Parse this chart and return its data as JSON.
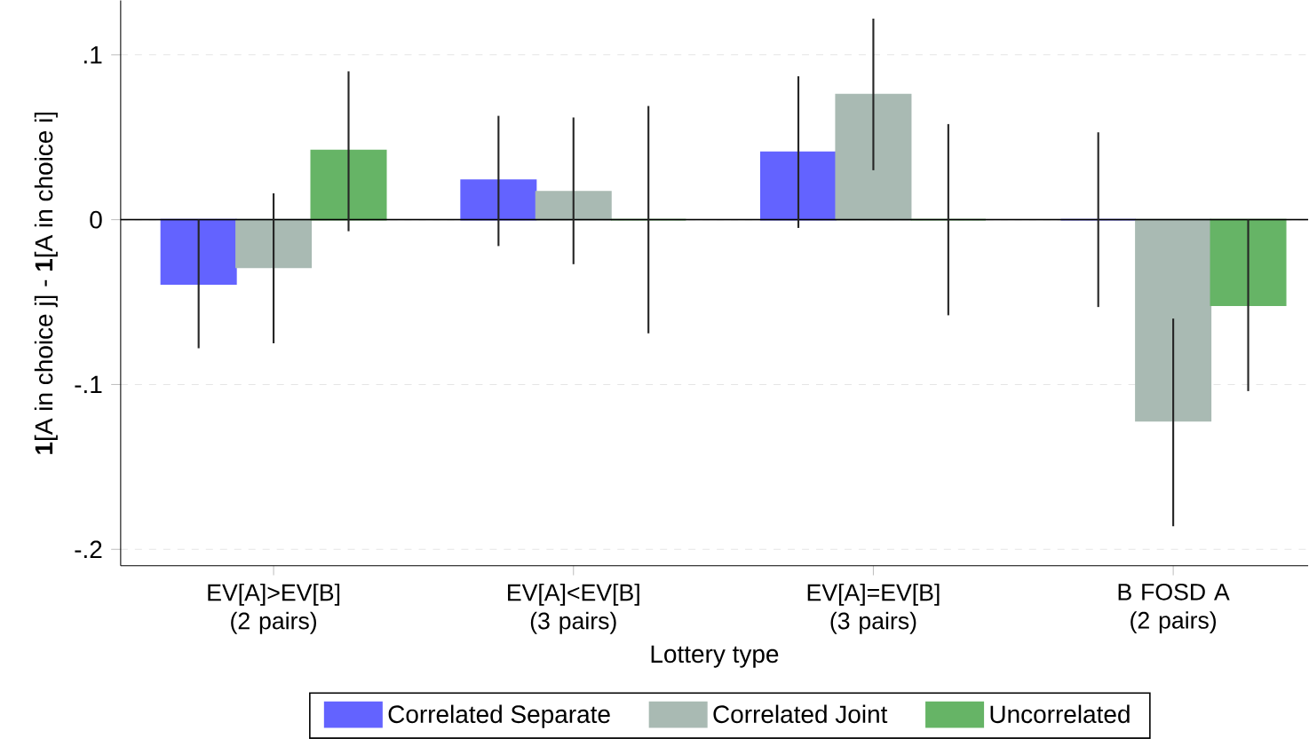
{
  "chart_data": {
    "type": "bar",
    "xlabel": "Lottery type",
    "ylabel": "**1**[A in choice j] - **1**[A in choice i]",
    "categories": [
      "EV[A]>EV[B] (2 pairs)",
      "EV[A]<EV[B] (3 pairs)",
      "EV[A]=EV[B] (3 pairs)",
      "B FOSD A (2 pairs)"
    ],
    "series": [
      {
        "name": "Correlated Separate",
        "color": "#6363ff",
        "values": [
          -0.039,
          0.024,
          0.041,
          0
        ],
        "errors": [
          [
            -0.078,
            0.0
          ],
          [
            -0.016,
            0.063
          ],
          [
            -0.005,
            0.087
          ],
          [
            -0.053,
            0.053
          ]
        ]
      },
      {
        "name": "Correlated Joint",
        "color": "#a9bab3",
        "values": [
          -0.029,
          0.017,
          0.076,
          -0.122
        ],
        "errors": [
          [
            -0.075,
            0.016
          ],
          [
            -0.027,
            0.062
          ],
          [
            0.03,
            0.122
          ],
          [
            -0.186,
            -0.06
          ]
        ]
      },
      {
        "name": "Uncorrelated",
        "color": "#66b466",
        "values": [
          0.042,
          0,
          0,
          -0.052
        ],
        "errors": [
          [
            -0.007,
            0.09
          ],
          [
            -0.069,
            0.069
          ],
          [
            -0.058,
            0.058
          ],
          [
            -0.104,
            0.0
          ]
        ]
      }
    ],
    "ylim": [
      -0.21,
      0.133
    ],
    "yticks": [
      {
        "value": 0.1,
        "label": ".1"
      },
      {
        "value": 0,
        "label": "0"
      },
      {
        "value": -0.1,
        "label": "-.1"
      },
      {
        "value": -0.2,
        "label": "-.2"
      }
    ],
    "ref_lines": [
      {
        "axis": "y",
        "value": 0
      }
    ],
    "grid": "y",
    "legend": "bottom"
  }
}
